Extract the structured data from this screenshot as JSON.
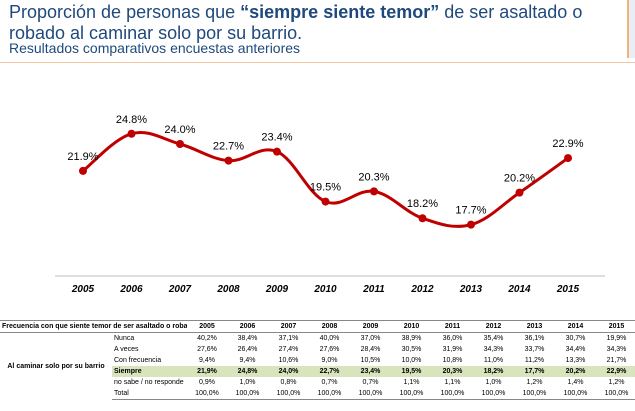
{
  "header": {
    "title_pre": "Proporción de personas que ",
    "title_bold": "“siempre siente temor”",
    "title_post": " de ser asaltado o robado al caminar solo por su barrio.",
    "subtitle": "Resultados comparativos encuestas anteriores"
  },
  "colors": {
    "line": "#c00000",
    "marker": "#c00000",
    "title": "#1f497d",
    "highlight": "#d8e4bc"
  },
  "chart_data": {
    "type": "line",
    "title": "Proporción de personas que “siempre siente temor” de ser asaltado o robado al caminar solo por su barrio.",
    "categories": [
      "2005",
      "2006",
      "2007",
      "2008",
      "2009",
      "2010",
      "2011",
      "2012",
      "2013",
      "2014",
      "2015"
    ],
    "values": [
      21.9,
      24.8,
      24.0,
      22.7,
      23.4,
      19.5,
      20.3,
      18.2,
      17.7,
      20.2,
      22.9
    ],
    "labels": [
      "21.9%",
      "24.8%",
      "24.0%",
      "22.7%",
      "23.4%",
      "19.5%",
      "20.3%",
      "18.2%",
      "17.7%",
      "20.2%",
      "22.9%"
    ],
    "ylim": [
      14,
      29
    ],
    "grid": false,
    "legend": "none",
    "xlabel": "",
    "ylabel": ""
  },
  "table": {
    "corner": "Frecuencia con que siente temor de ser asaltado o robado",
    "group_label": "Al caminar solo por su barrio",
    "years": [
      "2005",
      "2006",
      "2007",
      "2008",
      "2009",
      "2010",
      "2011",
      "2012",
      "2013",
      "2014",
      "2015"
    ],
    "rows": [
      {
        "label": "Nunca",
        "values": [
          "40,2%",
          "38,4%",
          "37,1%",
          "40,0%",
          "37,0%",
          "38,9%",
          "36,0%",
          "35,4%",
          "36,1%",
          "30,7%",
          "19,9%"
        ]
      },
      {
        "label": "A veces",
        "values": [
          "27,6%",
          "26,4%",
          "27,4%",
          "27,6%",
          "28,4%",
          "30,5%",
          "31,9%",
          "34,3%",
          "33,7%",
          "34,4%",
          "34,3%"
        ]
      },
      {
        "label": "Con frecuencia",
        "values": [
          "9,4%",
          "9,4%",
          "10,6%",
          "9,0%",
          "10,5%",
          "10,0%",
          "10,8%",
          "11,0%",
          "11,2%",
          "13,3%",
          "21,7%"
        ]
      },
      {
        "label": "Siempre",
        "highlight": true,
        "values": [
          "21,9%",
          "24,8%",
          "24,0%",
          "22,7%",
          "23,4%",
          "19,5%",
          "20,3%",
          "18,2%",
          "17,7%",
          "20,2%",
          "22,9%"
        ]
      },
      {
        "label": "no sabe / no responde",
        "values": [
          "0,9%",
          "1,0%",
          "0,8%",
          "0,7%",
          "0,7%",
          "1,1%",
          "1,1%",
          "1,0%",
          "1,2%",
          "1,4%",
          "1,2%"
        ]
      },
      {
        "label": "Total",
        "values": [
          "100,0%",
          "100,0%",
          "100,0%",
          "100,0%",
          "100,0%",
          "100,0%",
          "100,0%",
          "100,0%",
          "100,0%",
          "100,0%",
          "100,0%"
        ]
      }
    ]
  }
}
